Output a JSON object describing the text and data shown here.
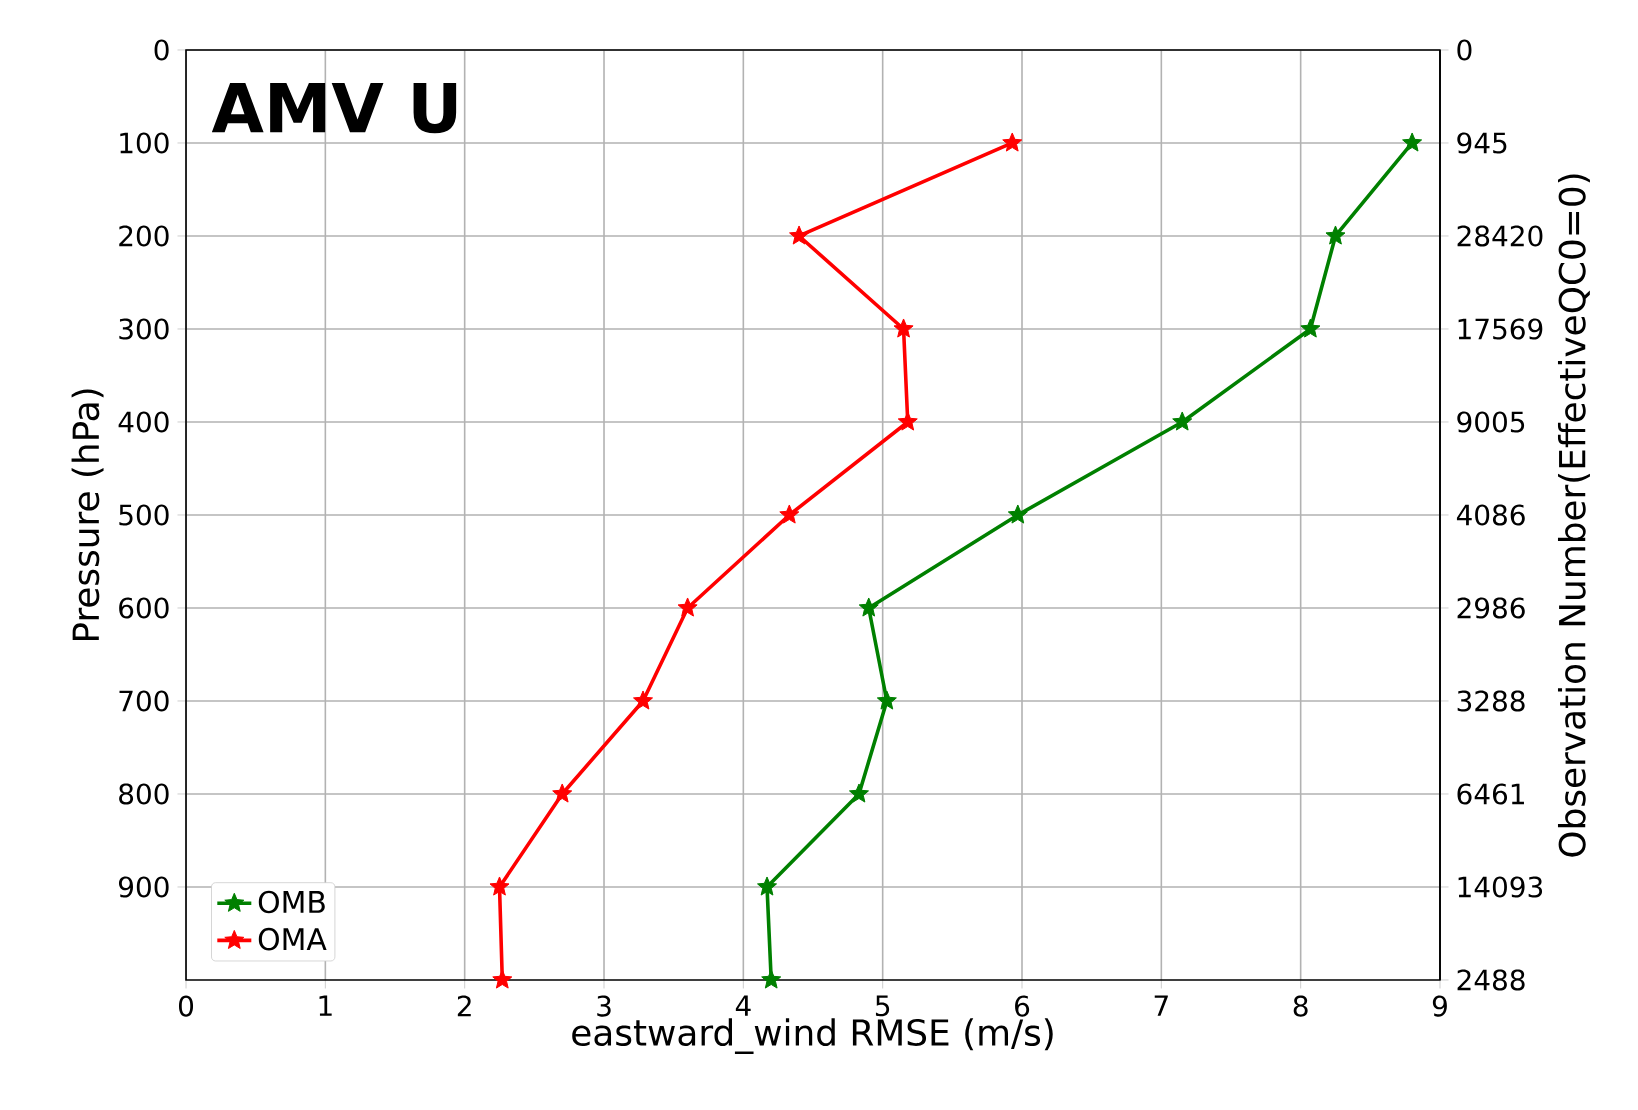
{
  "chart_data": {
    "type": "line",
    "annotations": [
      "AMV U",
      "0",
      "945",
      "28420",
      "17569",
      "9005",
      "4086",
      "2986",
      "3288",
      "6461",
      "14093",
      "2488"
    ],
    "xlabel": "eastward_wind  RMSE  (m/s)",
    "ylabel": "Pressure (hPa)",
    "y2label": "Observation Number(EffectiveQC0=0)",
    "x": [
      100,
      200,
      300,
      400,
      500,
      600,
      700,
      800,
      900,
      1000
    ],
    "series": [
      {
        "name": "OMB",
        "color": "#008000",
        "values": [
          8.8,
          8.25,
          8.07,
          7.15,
          5.97,
          4.9,
          5.03,
          4.83,
          4.17,
          4.2
        ]
      },
      {
        "name": "OMA",
        "color": "#ff0000",
        "values": [
          5.93,
          4.4,
          5.15,
          5.18,
          4.33,
          3.6,
          3.28,
          2.7,
          2.25,
          2.27
        ]
      }
    ],
    "orientation": "horizontal",
    "xlim": [
      0,
      9
    ],
    "xticks": [
      0,
      1,
      2,
      3,
      4,
      5,
      6,
      7,
      8,
      9
    ],
    "ylim": [
      1000,
      0
    ],
    "yticks": [
      0,
      100,
      200,
      300,
      400,
      500,
      600,
      700,
      800,
      900
    ],
    "grid": true,
    "legend": "bottom left",
    "marker": "star",
    "line_style": "solid"
  }
}
